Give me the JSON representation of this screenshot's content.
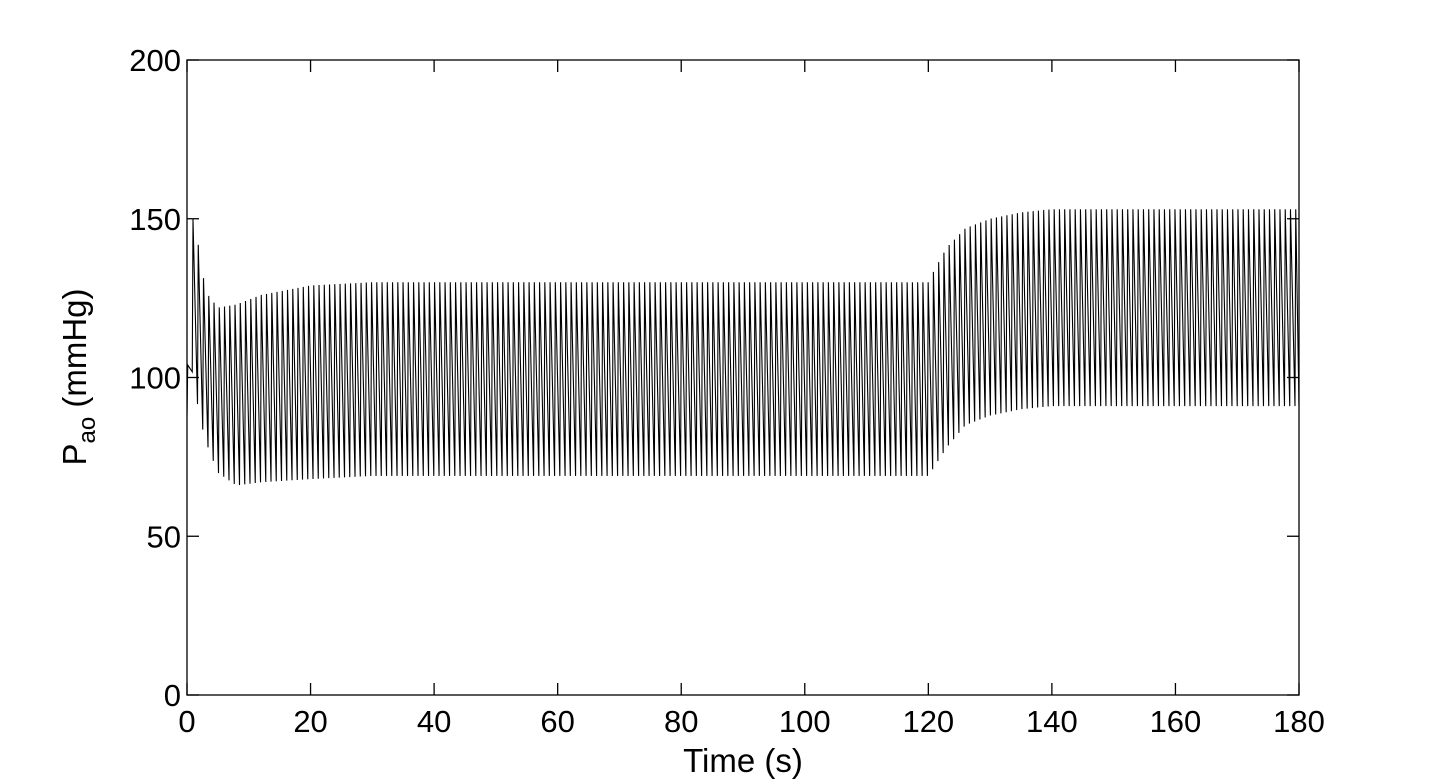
{
  "chart_data": {
    "type": "line",
    "title": "",
    "xlabel": "Time (s)",
    "ylabel": {
      "main": "P",
      "subscript": "ao",
      "unit": " (mmHg)"
    },
    "xlim": [
      0,
      180
    ],
    "ylim": [
      0,
      200
    ],
    "xticks": [
      0,
      20,
      40,
      60,
      80,
      100,
      120,
      140,
      160,
      180
    ],
    "yticks": [
      0,
      50,
      100,
      150,
      200
    ],
    "grid": false,
    "legend": "none",
    "line_color": "#000000",
    "series": [
      {
        "heart_period_s": 0.85,
        "envelope": {
          "t": [
            0,
            0.5,
            1,
            2,
            3,
            5,
            8,
            12,
            20,
            30,
            60,
            90,
            119,
            120,
            121,
            123,
            126,
            130,
            135,
            140,
            160,
            180
          ],
          "systolic": [
            90,
            148,
            150,
            140,
            127,
            122,
            123,
            126,
            129,
            130,
            130,
            130,
            130,
            130,
            134,
            141,
            147,
            150,
            152,
            153,
            153,
            153
          ],
          "diastolic": [
            88,
            106,
            100,
            88,
            80,
            70,
            66,
            67,
            68,
            69,
            69,
            69,
            69,
            69,
            72,
            78,
            85,
            88,
            90,
            91,
            91,
            91
          ]
        }
      }
    ]
  }
}
